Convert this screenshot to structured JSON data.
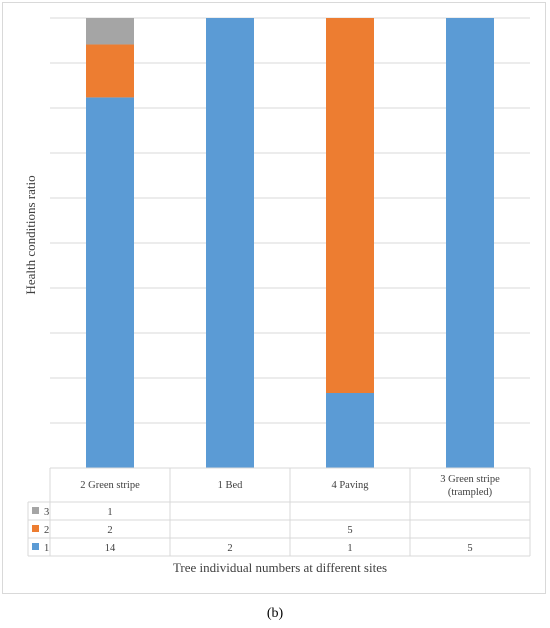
{
  "chart_data": {
    "type": "bar",
    "stacked": true,
    "normalized": true,
    "categories": [
      "2 Green stripe",
      "1 Bed",
      "4 Paving",
      "3 Green stripe (trampled)"
    ],
    "series": [
      {
        "name": "1",
        "values": [
          14,
          2,
          1,
          5
        ],
        "color": "#5b9bd5"
      },
      {
        "name": "2",
        "values": [
          2,
          null,
          5,
          null
        ],
        "color": "#ed7d31"
      },
      {
        "name": "3",
        "values": [
          1,
          null,
          null,
          null
        ],
        "color": "#a5a5a5"
      }
    ],
    "title": "",
    "xlabel": "Tree individual numbers at different sites",
    "ylabel": "Health conditions ratio",
    "ylim": [
      0,
      1
    ],
    "grid": true,
    "legend": "data-table"
  },
  "caption": "(b)"
}
